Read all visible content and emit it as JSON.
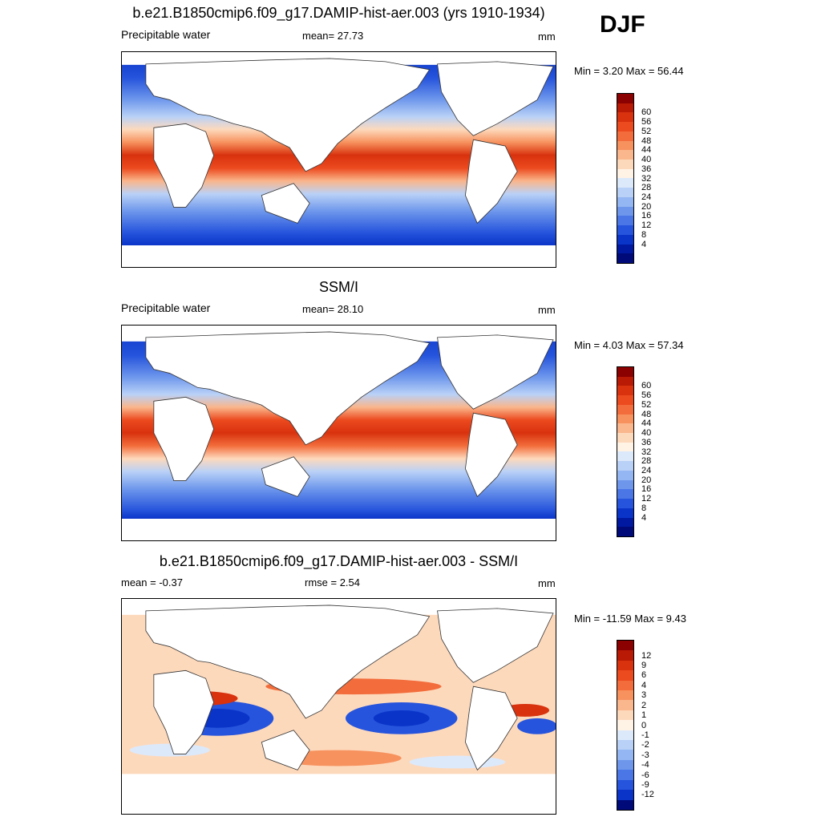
{
  "season": "DJF",
  "panels": [
    {
      "title": "b.e21.B1850cmip6.f09_g17.DAMIP-hist-aer.003 (yrs 1910-1934)",
      "left_label": "Precipitable water",
      "center_label": "mean=  27.73",
      "units": "mm",
      "minmax": "Min =   3.20 Max =  56.44"
    },
    {
      "title": "SSM/I",
      "left_label": "Precipitable water",
      "center_label": "mean=  28.10",
      "units": "mm",
      "minmax": "Min =   4.03 Max =  57.34"
    },
    {
      "title": "b.e21.B1850cmip6.f09_g17.DAMIP-hist-aer.003 - SSM/I",
      "left_label": "mean =  -0.37",
      "center_label": "rmse =   2.54",
      "units": "mm",
      "minmax": "Min = -11.59 Max =   9.43"
    }
  ],
  "colorbars": {
    "abs_levels": [
      "60",
      "56",
      "52",
      "48",
      "44",
      "40",
      "36",
      "32",
      "28",
      "24",
      "20",
      "16",
      "12",
      "8",
      "4"
    ],
    "abs_colors": [
      "#8b0000",
      "#b81a05",
      "#d8320e",
      "#ec4a1f",
      "#f36d3c",
      "#f7925e",
      "#fab68c",
      "#fdd9bc",
      "#fff3e6",
      "#dce9fb",
      "#b9d1f7",
      "#94b6f2",
      "#6e97ec",
      "#4a76e6",
      "#2654dc",
      "#0a34c8",
      "#0019a0",
      "#000a78"
    ],
    "diff_levels": [
      "12",
      "9",
      "6",
      "4",
      "3",
      "2",
      "1",
      "0",
      "-1",
      "-2",
      "-3",
      "-4",
      "-6",
      "-9",
      "-12"
    ],
    "diff_colors": [
      "#8b0000",
      "#b81a05",
      "#d8320e",
      "#ec4a1f",
      "#f36d3c",
      "#f7925e",
      "#fab68c",
      "#fdd9bc",
      "#fff3e6",
      "#dce9fb",
      "#b9d1f7",
      "#94b6f2",
      "#6e97ec",
      "#4a76e6",
      "#2654dc",
      "#0a34c8",
      "#000a78"
    ]
  },
  "chart_data": [
    {
      "type": "heatmap",
      "title": "b.e21.B1850cmip6.f09_g17.DAMIP-hist-aer.003 (yrs 1910-1934)",
      "variable": "Precipitable water",
      "units": "mm",
      "mean": 27.73,
      "min": 3.2,
      "max": 56.44,
      "contour_levels": [
        4,
        8,
        12,
        16,
        20,
        24,
        28,
        32,
        36,
        40,
        44,
        48,
        52,
        56,
        60
      ],
      "season": "DJF"
    },
    {
      "type": "heatmap",
      "title": "SSM/I",
      "variable": "Precipitable water",
      "units": "mm",
      "mean": 28.1,
      "min": 4.03,
      "max": 57.34,
      "contour_levels": [
        4,
        8,
        12,
        16,
        20,
        24,
        28,
        32,
        36,
        40,
        44,
        48,
        52,
        56,
        60
      ],
      "season": "DJF"
    },
    {
      "type": "heatmap",
      "title": "b.e21.B1850cmip6.f09_g17.DAMIP-hist-aer.003 - SSM/I",
      "units": "mm",
      "mean": -0.37,
      "rmse": 2.54,
      "min": -11.59,
      "max": 9.43,
      "contour_levels": [
        -12,
        -9,
        -6,
        -4,
        -3,
        -2,
        -1,
        0,
        1,
        2,
        3,
        4,
        6,
        9,
        12
      ],
      "season": "DJF"
    }
  ]
}
